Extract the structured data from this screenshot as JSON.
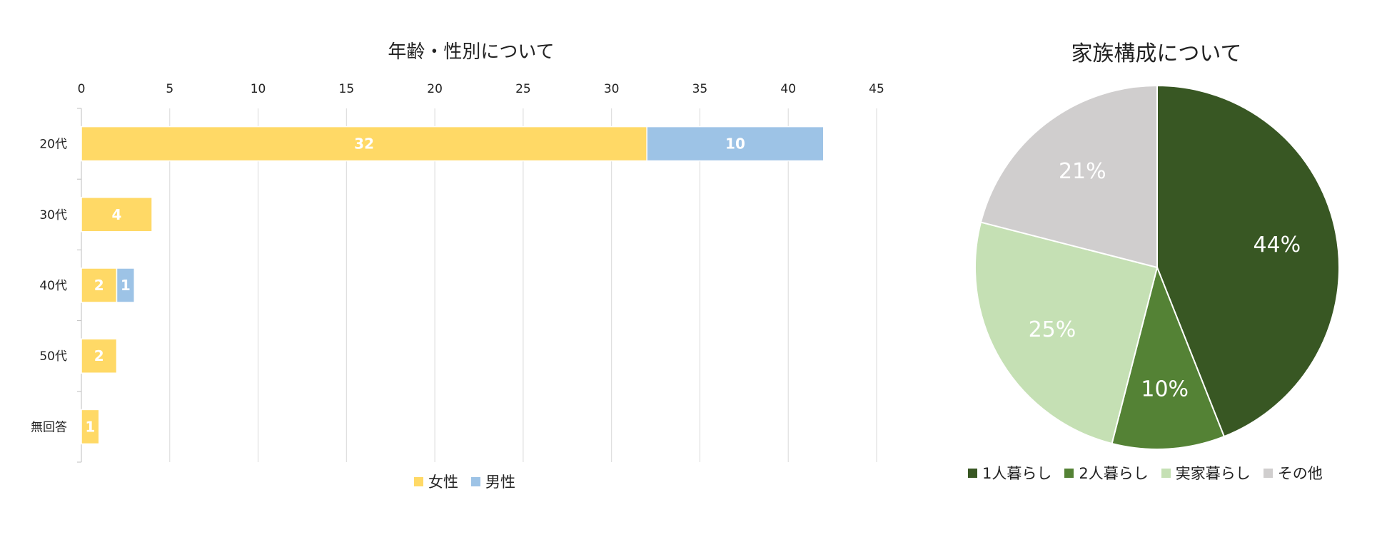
{
  "chart_data": [
    {
      "type": "bar",
      "orientation": "horizontal",
      "stacked": true,
      "title": "年齢・性別について",
      "categories": [
        "20代",
        "30代",
        "40代",
        "50代",
        "無回答"
      ],
      "series": [
        {
          "name": "女性",
          "values": [
            32,
            4,
            2,
            2,
            1
          ],
          "color": "#FFD966"
        },
        {
          "name": "男性",
          "values": [
            10,
            0,
            1,
            0,
            0
          ],
          "color": "#9DC3E6"
        }
      ],
      "xlim": [
        0,
        45
      ],
      "xticks": [
        "0",
        "5",
        "10",
        "15",
        "20",
        "25",
        "30",
        "35",
        "40",
        "45"
      ],
      "xaxis_position": "top",
      "grid": true,
      "legend_position": "bottom"
    },
    {
      "type": "pie",
      "title": "家族構成について",
      "slices": [
        {
          "name": "1人暮らし",
          "value": 44,
          "label": "44%",
          "color": "#385723"
        },
        {
          "name": "2人暮らし",
          "value": 10,
          "label": "10%",
          "color": "#548235"
        },
        {
          "name": "実家暮らし",
          "value": 25,
          "label": "25%",
          "color": "#C5E0B4"
        },
        {
          "name": "その他",
          "value": 21,
          "label": "21%",
          "color": "#D0CECE"
        }
      ],
      "legend_position": "bottom"
    }
  ]
}
